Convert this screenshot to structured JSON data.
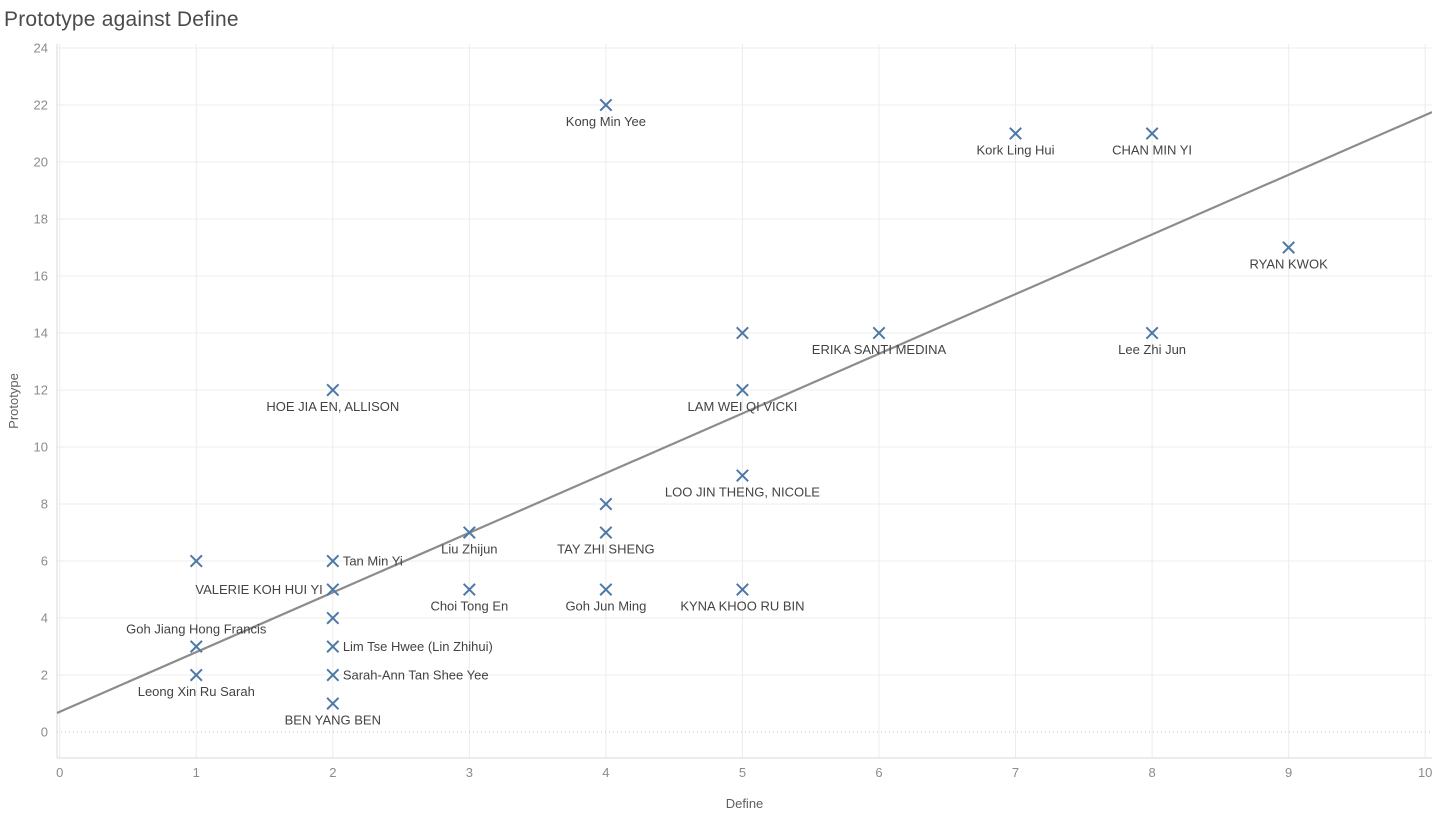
{
  "title": "Prototype against Define",
  "colors": {
    "mark": "#4e79a7",
    "trend_line": "#8c8c8c",
    "grid": "#ececec",
    "zero_line": "#c4c4c4",
    "ruler": "#d9d9d9",
    "tick_label": "#8c8c8c",
    "axis_title": "#5f5f5f",
    "data_label": "#434343",
    "title_color": "#4b4b4b",
    "background": "#ffffff"
  },
  "chart_data": {
    "type": "scatter",
    "title": "Prototype against Define",
    "xlabel": "Define",
    "ylabel": "Prototype",
    "marker": "x",
    "grid": true,
    "legend": "none",
    "xlim": [
      -0.02,
      10.05
    ],
    "ylim": [
      -0.91,
      24.14
    ],
    "x_ticks": [
      0,
      1,
      2,
      3,
      4,
      5,
      6,
      7,
      8,
      9,
      10
    ],
    "y_ticks": [
      0,
      2,
      4,
      6,
      8,
      10,
      12,
      14,
      16,
      18,
      20,
      22,
      24
    ],
    "trend_line": {
      "x1": -0.02,
      "y1": 0.67,
      "x2": 10.05,
      "y2": 21.75
    },
    "points": [
      {
        "label": "Kong Min Yee",
        "x": 4,
        "y": 22,
        "label_position": "below"
      },
      {
        "label": "Kork Ling Hui",
        "x": 7,
        "y": 21,
        "label_position": "below"
      },
      {
        "label": "CHAN MIN YI",
        "x": 8,
        "y": 21,
        "label_position": "below"
      },
      {
        "label": "RYAN KWOK",
        "x": 9,
        "y": 17,
        "label_position": "below"
      },
      {
        "label": "",
        "x": 5,
        "y": 14,
        "label_position": "none"
      },
      {
        "label": "ERIKA SANTI MEDINA",
        "x": 6,
        "y": 14,
        "label_position": "below"
      },
      {
        "label": "Lee Zhi Jun",
        "x": 8,
        "y": 14,
        "label_position": "below"
      },
      {
        "label": "HOE JIA EN, ALLISON",
        "x": 2,
        "y": 12,
        "label_position": "below"
      },
      {
        "label": "LAM WEI QI VICKI",
        "x": 5,
        "y": 12,
        "label_position": "below"
      },
      {
        "label": "LOO JIN THENG, NICOLE",
        "x": 5,
        "y": 9,
        "label_position": "below"
      },
      {
        "label": "",
        "x": 4,
        "y": 8,
        "label_position": "none"
      },
      {
        "label": "Liu Zhijun",
        "x": 3,
        "y": 7,
        "label_position": "below"
      },
      {
        "label": "TAY ZHI SHENG",
        "x": 4,
        "y": 7,
        "label_position": "below"
      },
      {
        "label": "",
        "x": 1,
        "y": 6,
        "label_position": "none"
      },
      {
        "label": "Tan Min Yi",
        "x": 2,
        "y": 6,
        "label_position": "right"
      },
      {
        "label": "VALERIE KOH HUI YI",
        "x": 2,
        "y": 5,
        "label_position": "left"
      },
      {
        "label": "Choi Tong En",
        "x": 3,
        "y": 5,
        "label_position": "below"
      },
      {
        "label": "Goh Jun Ming",
        "x": 4,
        "y": 5,
        "label_position": "below"
      },
      {
        "label": "KYNA KHOO RU BIN",
        "x": 5,
        "y": 5,
        "label_position": "below"
      },
      {
        "label": "",
        "x": 2,
        "y": 4,
        "label_position": "none"
      },
      {
        "label": "Goh Jiang Hong Francis",
        "x": 1,
        "y": 3,
        "label_position": "above"
      },
      {
        "label": "Lim Tse Hwee (Lin Zhihui)",
        "x": 2,
        "y": 3,
        "label_position": "right"
      },
      {
        "label": "Leong Xin Ru Sarah",
        "x": 1,
        "y": 2,
        "label_position": "below"
      },
      {
        "label": "Sarah-Ann Tan Shee Yee",
        "x": 2,
        "y": 2,
        "label_position": "right"
      },
      {
        "label": "BEN YANG BEN",
        "x": 2,
        "y": 1,
        "label_position": "below"
      }
    ]
  }
}
